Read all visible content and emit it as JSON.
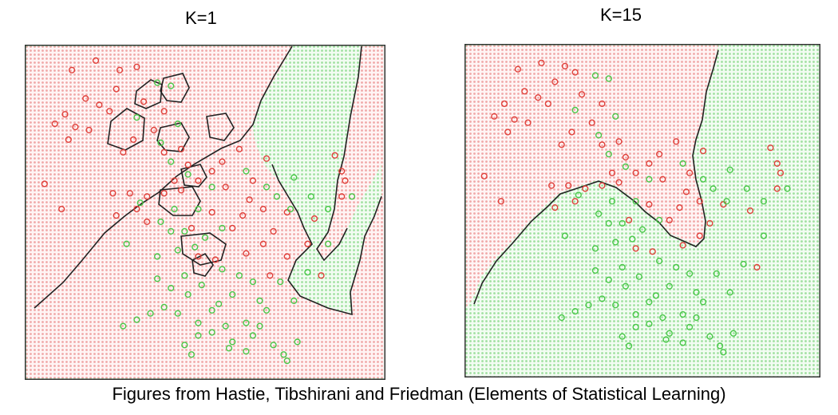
{
  "caption": "Figures from Hastie, Tibshirani and Friedman (Elements of Statistical Learning)",
  "colors": {
    "class_red": "#e0403a",
    "class_green": "#48c848",
    "region_red": "#fbe0e0",
    "region_green": "#e1f7e1",
    "boundary": "#222222"
  },
  "chart_data": [
    {
      "type": "scatter",
      "title": "K=1",
      "xlim": [
        0,
        100
      ],
      "ylim": [
        0,
        100
      ],
      "grid": false,
      "series": [
        {
          "class": "red",
          "points": [
            [
              11,
              95
            ],
            [
              18,
              98
            ],
            [
              25,
              95
            ],
            [
              30,
              96
            ],
            [
              24,
              89
            ],
            [
              15,
              86
            ],
            [
              19,
              84
            ],
            [
              9,
              81
            ],
            [
              6,
              78
            ],
            [
              12,
              77
            ],
            [
              10,
              73
            ],
            [
              16,
              76
            ],
            [
              22,
              82
            ],
            [
              32,
              85
            ],
            [
              38,
              82
            ],
            [
              35,
              76
            ],
            [
              29,
              73
            ],
            [
              26,
              69
            ],
            [
              38,
              69
            ],
            [
              43,
              70
            ],
            [
              45,
              65
            ],
            [
              48,
              60
            ],
            [
              52,
              63
            ],
            [
              56,
              58
            ],
            [
              55,
              66
            ],
            [
              60,
              70
            ],
            [
              64,
              60
            ],
            [
              68,
              67
            ],
            [
              63,
              54
            ],
            [
              67,
              51
            ],
            [
              61,
              49
            ],
            [
              58,
              45
            ],
            [
              52,
              50
            ],
            [
              46,
              45
            ],
            [
              48,
              36
            ],
            [
              53,
              35
            ],
            [
              62,
              37
            ],
            [
              67,
              40
            ],
            [
              70,
              44
            ],
            [
              74,
              50
            ],
            [
              69,
              30
            ],
            [
              74,
              36
            ],
            [
              80,
              40
            ],
            [
              33,
              55
            ],
            [
              38,
              56
            ],
            [
              43,
              57
            ],
            [
              41,
              60
            ],
            [
              3,
              59
            ],
            [
              8,
              51
            ],
            [
              23,
              56
            ],
            [
              24,
              49
            ],
            [
              28,
              56
            ],
            [
              30,
              51
            ],
            [
              33,
              47
            ],
            [
              88,
              68
            ],
            [
              90,
              63
            ],
            [
              90,
              55
            ],
            [
              91,
              60
            ],
            [
              84,
              30
            ],
            [
              82,
              48
            ]
          ]
        },
        {
          "class": "green",
          "points": [
            [
              36,
              91
            ],
            [
              40,
              90
            ],
            [
              30,
              80
            ],
            [
              42,
              78
            ],
            [
              37,
              72
            ],
            [
              40,
              66
            ],
            [
              45,
              62
            ],
            [
              52,
              58
            ],
            [
              62,
              63
            ],
            [
              68,
              58
            ],
            [
              71,
              55
            ],
            [
              76,
              61
            ],
            [
              75,
              51
            ],
            [
              81,
              55
            ],
            [
              86,
              51
            ],
            [
              93,
              55
            ],
            [
              86,
              40
            ],
            [
              80,
              31
            ],
            [
              72,
              28
            ],
            [
              76,
              22
            ],
            [
              66,
              22
            ],
            [
              58,
              24
            ],
            [
              54,
              21
            ],
            [
              49,
              27
            ],
            [
              44,
              30
            ],
            [
              42,
              38
            ],
            [
              44,
              44
            ],
            [
              47,
              39
            ],
            [
              55,
              45
            ],
            [
              60,
              30
            ],
            [
              45,
              24
            ],
            [
              38,
              20
            ],
            [
              34,
              18
            ],
            [
              30,
              16
            ],
            [
              26,
              14
            ],
            [
              36,
              29
            ],
            [
              42,
              18
            ],
            [
              48,
              15
            ],
            [
              52,
              19
            ],
            [
              56,
              14
            ],
            [
              58,
              9
            ],
            [
              62,
              6
            ],
            [
              64,
              11
            ],
            [
              66,
              14
            ],
            [
              70,
              8
            ],
            [
              73,
              5
            ],
            [
              74,
              3
            ],
            [
              77,
              9
            ],
            [
              68,
              19
            ],
            [
              64,
              28
            ],
            [
              55,
              32
            ],
            [
              50,
              42
            ],
            [
              41,
              51
            ],
            [
              48,
              51
            ],
            [
              31,
              53
            ],
            [
              37,
              47
            ],
            [
              40,
              44
            ],
            [
              27,
              40
            ],
            [
              36,
              36
            ],
            [
              40,
              26
            ],
            [
              62,
              15
            ],
            [
              57,
              7
            ],
            [
              52,
              12
            ],
            [
              46,
              5
            ],
            [
              44,
              8
            ],
            [
              48,
              11
            ]
          ]
        }
      ]
    },
    {
      "type": "scatter",
      "title": "K=15",
      "xlim": [
        0,
        100
      ],
      "ylim": [
        0,
        100
      ],
      "grid": false,
      "series": [
        {
          "class": "red",
          "points": [
            [
              13,
              95
            ],
            [
              20,
              97
            ],
            [
              27,
              96
            ],
            [
              30,
              94
            ],
            [
              24,
              91
            ],
            [
              15,
              88
            ],
            [
              19,
              86
            ],
            [
              9,
              84
            ],
            [
              6,
              80
            ],
            [
              12,
              79
            ],
            [
              10,
              75
            ],
            [
              16,
              78
            ],
            [
              22,
              84
            ],
            [
              32,
              87
            ],
            [
              38,
              84
            ],
            [
              35,
              78
            ],
            [
              29,
              75
            ],
            [
              26,
              71
            ],
            [
              38,
              71
            ],
            [
              43,
              72
            ],
            [
              45,
              67
            ],
            [
              48,
              62
            ],
            [
              52,
              65
            ],
            [
              56,
              60
            ],
            [
              55,
              68
            ],
            [
              60,
              72
            ],
            [
              64,
              62
            ],
            [
              68,
              69
            ],
            [
              63,
              56
            ],
            [
              67,
              53
            ],
            [
              61,
              51
            ],
            [
              58,
              47
            ],
            [
              52,
              52
            ],
            [
              46,
              47
            ],
            [
              48,
              38
            ],
            [
              53,
              37
            ],
            [
              62,
              39
            ],
            [
              67,
              42
            ],
            [
              70,
              46
            ],
            [
              74,
              52
            ],
            [
              33,
              57
            ],
            [
              38,
              58
            ],
            [
              43,
              59
            ],
            [
              41,
              62
            ],
            [
              3,
              61
            ],
            [
              8,
              53
            ],
            [
              23,
              58
            ],
            [
              24,
              51
            ],
            [
              28,
              58
            ],
            [
              30,
              53
            ],
            [
              88,
              70
            ],
            [
              90,
              65
            ],
            [
              90,
              57
            ],
            [
              91,
              62
            ],
            [
              84,
              32
            ],
            [
              82,
              50
            ]
          ]
        },
        {
          "class": "green",
          "points": [
            [
              36,
              93
            ],
            [
              40,
              92
            ],
            [
              30,
              82
            ],
            [
              42,
              80
            ],
            [
              37,
              74
            ],
            [
              40,
              68
            ],
            [
              45,
              64
            ],
            [
              52,
              60
            ],
            [
              62,
              65
            ],
            [
              68,
              60
            ],
            [
              71,
              57
            ],
            [
              76,
              63
            ],
            [
              75,
              53
            ],
            [
              81,
              57
            ],
            [
              86,
              53
            ],
            [
              93,
              57
            ],
            [
              86,
              42
            ],
            [
              80,
              33
            ],
            [
              72,
              30
            ],
            [
              76,
              24
            ],
            [
              66,
              24
            ],
            [
              58,
              26
            ],
            [
              54,
              23
            ],
            [
              49,
              29
            ],
            [
              44,
              32
            ],
            [
              42,
              40
            ],
            [
              44,
              46
            ],
            [
              47,
              41
            ],
            [
              55,
              47
            ],
            [
              60,
              32
            ],
            [
              45,
              26
            ],
            [
              38,
              22
            ],
            [
              34,
              20
            ],
            [
              30,
              18
            ],
            [
              26,
              16
            ],
            [
              36,
              31
            ],
            [
              42,
              20
            ],
            [
              48,
              17
            ],
            [
              52,
              21
            ],
            [
              56,
              16
            ],
            [
              58,
              11
            ],
            [
              62,
              8
            ],
            [
              64,
              13
            ],
            [
              66,
              16
            ],
            [
              70,
              10
            ],
            [
              73,
              7
            ],
            [
              74,
              5
            ],
            [
              77,
              11
            ],
            [
              68,
              21
            ],
            [
              64,
              30
            ],
            [
              55,
              34
            ],
            [
              50,
              44
            ],
            [
              41,
              53
            ],
            [
              48,
              53
            ],
            [
              31,
              55
            ],
            [
              37,
              49
            ],
            [
              40,
              46
            ],
            [
              27,
              42
            ],
            [
              36,
              38
            ],
            [
              40,
              28
            ],
            [
              62,
              17
            ],
            [
              57,
              9
            ],
            [
              52,
              14
            ],
            [
              46,
              7
            ],
            [
              44,
              10
            ],
            [
              48,
              13
            ]
          ]
        }
      ]
    }
  ]
}
